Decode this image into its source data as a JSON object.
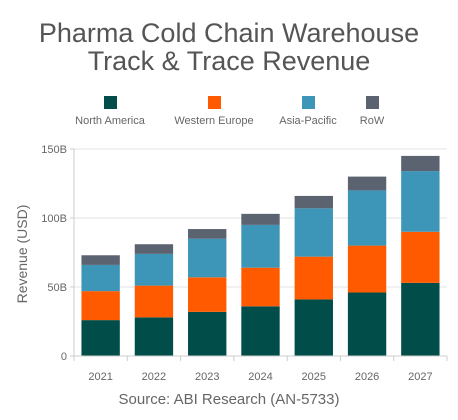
{
  "chart_data": {
    "type": "bar",
    "stacked": true,
    "title_line1": "Pharma Cold Chain Warehouse",
    "title_line2": "Track & Trace Revenue",
    "ylabel": "Revenue (USD)",
    "xlabel": "",
    "source": "Source: ABI Research (AN-5733)",
    "ylim": [
      0,
      150
    ],
    "yticks": [
      0,
      50,
      100,
      150
    ],
    "ytick_labels": [
      "0",
      "50B",
      "100B",
      "150B"
    ],
    "grid": true,
    "legend_position": "top",
    "categories": [
      "2021",
      "2022",
      "2023",
      "2024",
      "2025",
      "2026",
      "2027"
    ],
    "series": [
      {
        "name": "North America",
        "color": "#004d4a",
        "values": [
          26,
          28,
          32,
          36,
          41,
          46,
          53
        ]
      },
      {
        "name": "Western Europe",
        "color": "#ff5a00",
        "values": [
          21,
          23,
          25,
          28,
          31,
          34,
          37
        ]
      },
      {
        "name": "Asia-Pacific",
        "color": "#3d96b8",
        "values": [
          19,
          23,
          28,
          31,
          35,
          40,
          44
        ]
      },
      {
        "name": "RoW",
        "color": "#5c6370",
        "values": [
          7,
          7,
          7,
          8,
          9,
          10,
          11
        ]
      }
    ]
  }
}
